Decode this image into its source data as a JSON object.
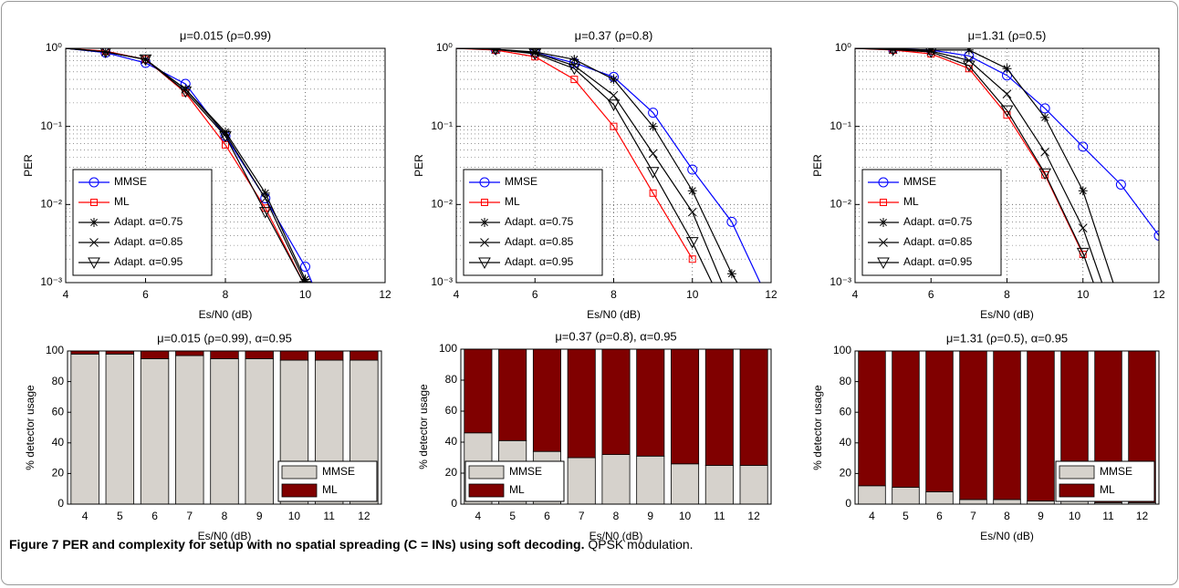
{
  "chart_data": [
    {
      "type": "line",
      "title": "μ=0.015 (ρ=0.99)",
      "xlabel": "Es/N0 (dB)",
      "ylabel": "PER",
      "log_y": true,
      "grid": true,
      "legend": "lower left",
      "x": [
        4,
        5,
        6,
        7,
        8,
        9,
        10,
        11
      ],
      "xlim": [
        4,
        12
      ],
      "xticks": [
        4,
        6,
        8,
        10,
        12
      ],
      "ylim": [
        0.001,
        1
      ],
      "yticks": [
        {
          "value": 0.001,
          "label": "10⁻³"
        },
        {
          "value": 0.01,
          "label": "10⁻²"
        },
        {
          "value": 0.1,
          "label": "10⁻¹"
        },
        {
          "value": 1,
          "label": "10⁰"
        }
      ],
      "series": [
        {
          "name": "MMSE",
          "color": "#0000ff",
          "marker": "o",
          "values": [
            1,
            0.88,
            0.65,
            0.35,
            0.075,
            0.012,
            0.0016,
            0.0001
          ]
        },
        {
          "name": "ML",
          "color": "#ff0000",
          "marker": "s",
          "values": [
            1,
            0.92,
            0.72,
            0.27,
            0.058,
            0.009,
            0.0009,
            5e-05
          ]
        },
        {
          "name": "Adapt. α=0.75",
          "color": "#000000",
          "marker": "*",
          "values": [
            1,
            0.9,
            0.72,
            0.3,
            0.085,
            0.014,
            0.0011,
            6e-05
          ]
        },
        {
          "name": "Adapt. α=0.85",
          "color": "#000000",
          "marker": "x",
          "values": [
            1,
            0.9,
            0.72,
            0.3,
            0.08,
            0.012,
            0.001,
            5e-05
          ]
        },
        {
          "name": "Adapt. α=0.95",
          "color": "#000000",
          "marker": "v",
          "values": [
            1,
            0.9,
            0.72,
            0.28,
            0.075,
            0.008,
            0.0009,
            4e-05
          ]
        }
      ]
    },
    {
      "type": "line",
      "title": "μ=0.37 (ρ=0.8)",
      "xlabel": "Es/N0 (dB)",
      "ylabel": "PER",
      "log_y": true,
      "grid": true,
      "legend": "lower left",
      "x": [
        4,
        5,
        6,
        7,
        8,
        9,
        10,
        11,
        12
      ],
      "xlim": [
        4,
        12
      ],
      "xticks": [
        4,
        6,
        8,
        10,
        12
      ],
      "ylim": [
        0.001,
        1
      ],
      "yticks": [
        {
          "value": 0.001,
          "label": "10⁻³"
        },
        {
          "value": 0.01,
          "label": "10⁻²"
        },
        {
          "value": 0.1,
          "label": "10⁻¹"
        },
        {
          "value": 1,
          "label": "10⁰"
        }
      ],
      "series": [
        {
          "name": "MMSE",
          "color": "#0000ff",
          "marker": "o",
          "values": [
            1,
            0.97,
            0.88,
            0.65,
            0.43,
            0.15,
            0.028,
            0.006,
            0.0005
          ]
        },
        {
          "name": "ML",
          "color": "#ff0000",
          "marker": "s",
          "values": [
            1,
            0.95,
            0.78,
            0.4,
            0.1,
            0.014,
            0.002,
            null,
            null
          ]
        },
        {
          "name": "Adapt. α=0.75",
          "color": "#000000",
          "marker": "*",
          "values": [
            1,
            0.97,
            0.9,
            0.72,
            0.4,
            0.1,
            0.015,
            0.0013,
            0.0002
          ]
        },
        {
          "name": "Adapt. α=0.85",
          "color": "#000000",
          "marker": "x",
          "values": [
            1,
            0.97,
            0.88,
            0.6,
            0.25,
            0.045,
            0.008,
            0.0005,
            null
          ]
        },
        {
          "name": "Adapt. α=0.95",
          "color": "#000000",
          "marker": "v",
          "values": [
            1,
            0.97,
            0.85,
            0.55,
            0.19,
            0.026,
            0.0033,
            0.0003,
            null
          ]
        }
      ]
    },
    {
      "type": "line",
      "title": "μ=1.31 (ρ=0.5)",
      "xlabel": "Es/N0 (dB)",
      "ylabel": "PER",
      "log_y": true,
      "grid": true,
      "legend": "lower left",
      "x": [
        4,
        5,
        6,
        7,
        8,
        9,
        10,
        11,
        12
      ],
      "xlim": [
        4,
        12
      ],
      "xticks": [
        4,
        6,
        8,
        10,
        12
      ],
      "ylim": [
        0.001,
        1
      ],
      "yticks": [
        {
          "value": 0.001,
          "label": "10⁻³"
        },
        {
          "value": 0.01,
          "label": "10⁻²"
        },
        {
          "value": 0.1,
          "label": "10⁻¹"
        },
        {
          "value": 1,
          "label": "10⁰"
        }
      ],
      "series": [
        {
          "name": "MMSE",
          "color": "#0000ff",
          "marker": "o",
          "values": [
            1,
            0.98,
            0.95,
            0.8,
            0.45,
            0.17,
            0.055,
            0.018,
            0.004
          ]
        },
        {
          "name": "ML",
          "color": "#ff0000",
          "marker": "s",
          "values": [
            1,
            0.95,
            0.85,
            0.55,
            0.14,
            0.024,
            0.0023,
            null,
            null
          ]
        },
        {
          "name": "Adapt. α=0.75",
          "color": "#000000",
          "marker": "*",
          "values": [
            1,
            0.98,
            0.95,
            0.95,
            0.55,
            0.13,
            0.015,
            0.0005,
            null
          ]
        },
        {
          "name": "Adapt. α=0.85",
          "color": "#000000",
          "marker": "x",
          "values": [
            1,
            0.97,
            0.92,
            0.7,
            0.26,
            0.047,
            0.005,
            0.0002,
            null
          ]
        },
        {
          "name": "Adapt. α=0.95",
          "color": "#000000",
          "marker": "v",
          "values": [
            1,
            0.96,
            0.9,
            0.6,
            0.16,
            0.025,
            0.0024,
            0.0001,
            null
          ]
        }
      ]
    },
    {
      "type": "stacked_bar",
      "title": "μ=0.015 (ρ=0.99), α=0.95",
      "xlabel": "Es/N0 (dB)",
      "ylabel": "% detector usage",
      "legend": "lower right",
      "categories": [
        "4",
        "5",
        "6",
        "7",
        "8",
        "9",
        "10",
        "11",
        "12"
      ],
      "ylim": [
        0,
        100
      ],
      "yticks": [
        0,
        20,
        40,
        60,
        80,
        100
      ],
      "series": [
        {
          "name": "MMSE",
          "color": "#d6d2cc",
          "values": [
            98,
            98,
            95,
            97,
            95,
            95,
            94,
            94,
            94
          ]
        },
        {
          "name": "ML",
          "color": "#800000",
          "values": [
            2,
            2,
            5,
            3,
            5,
            5,
            6,
            6,
            6
          ]
        }
      ]
    },
    {
      "type": "stacked_bar",
      "title": "μ=0.37 (ρ=0.8), α=0.95",
      "xlabel": "Es/N0 (dB)",
      "ylabel": "% detector usage",
      "legend": "lower left",
      "categories": [
        "4",
        "5",
        "6",
        "7",
        "8",
        "9",
        "10",
        "11",
        "12"
      ],
      "ylim": [
        0,
        100
      ],
      "yticks": [
        0,
        20,
        40,
        60,
        80,
        100
      ],
      "series": [
        {
          "name": "MMSE",
          "color": "#d6d2cc",
          "values": [
            46,
            41,
            34,
            30,
            32,
            31,
            26,
            25,
            25
          ]
        },
        {
          "name": "ML",
          "color": "#800000",
          "values": [
            54,
            59,
            66,
            70,
            68,
            69,
            74,
            75,
            75
          ]
        }
      ]
    },
    {
      "type": "stacked_bar",
      "title": "μ=1.31 (ρ=0.5), α=0.95",
      "xlabel": "Es/N0 (dB)",
      "ylabel": "% detector usage",
      "legend": "lower right",
      "categories": [
        "4",
        "5",
        "6",
        "7",
        "8",
        "9",
        "10",
        "11",
        "12"
      ],
      "ylim": [
        0,
        100
      ],
      "yticks": [
        0,
        20,
        40,
        60,
        80,
        100
      ],
      "series": [
        {
          "name": "MMSE",
          "color": "#d6d2cc",
          "values": [
            12,
            11,
            8,
            3,
            3,
            2,
            2,
            1,
            1
          ]
        },
        {
          "name": "ML",
          "color": "#800000",
          "values": [
            88,
            89,
            92,
            97,
            97,
            98,
            98,
            99,
            99
          ]
        }
      ]
    }
  ],
  "caption": {
    "bold": "Figure 7 PER and complexity for setup with no spatial spreading (C = INs) using soft decoding.",
    "text": "QPSK modulation."
  }
}
